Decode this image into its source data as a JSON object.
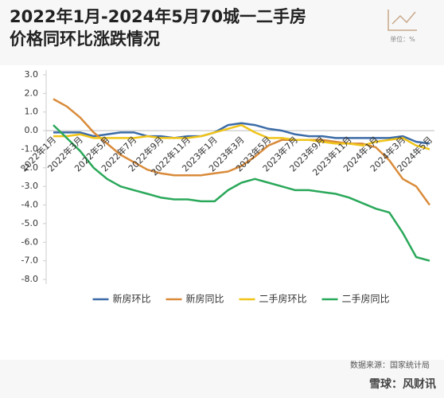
{
  "chart_data": {
    "type": "line",
    "title": [
      "2022年1月-2024年5月70城一二手房",
      "价格同环比涨跌情况"
    ],
    "unit_label": "单位：%",
    "source": "数据来源：国家统计局",
    "footer": "雪球：风财讯",
    "categories": [
      "2022年1月",
      null,
      "2022年3月",
      null,
      "2022年5月",
      null,
      "2022年7月",
      null,
      "2022年9月",
      null,
      "2022年11月",
      null,
      "2023年1月",
      null,
      "2023年3月",
      null,
      "2023年5月",
      null,
      "2023年7月",
      null,
      "2023年9月",
      null,
      "2023年11月",
      null,
      "2024年1月",
      null,
      "2024年3月",
      null,
      "2024年5月"
    ],
    "ylim": [
      -8,
      3
    ],
    "yticks": [
      {
        "value": 3,
        "label": "3.0"
      },
      {
        "value": 2,
        "label": "2.0"
      },
      {
        "value": 1,
        "label": "1.0"
      },
      {
        "value": 0,
        "label": "0.0"
      },
      {
        "value": -1,
        "label": "-1.0"
      },
      {
        "value": -2,
        "label": "-2.0"
      },
      {
        "value": -3,
        "label": "-3.0"
      },
      {
        "value": -4,
        "label": "-4.0"
      },
      {
        "value": -5,
        "label": "-5.0"
      },
      {
        "value": -6,
        "label": "-6.0"
      },
      {
        "value": -7,
        "label": "-7.0"
      },
      {
        "value": -8,
        "label": "-8.0"
      }
    ],
    "grid": false,
    "legend": "bottom",
    "series": [
      {
        "name": "新房环比",
        "color": "#3c6ca8",
        "values": [
          -0.1,
          -0.1,
          -0.1,
          -0.3,
          -0.2,
          -0.1,
          -0.1,
          -0.3,
          -0.3,
          -0.4,
          -0.3,
          -0.3,
          -0.1,
          0.3,
          0.4,
          0.3,
          0.1,
          0.0,
          -0.2,
          -0.3,
          -0.3,
          -0.4,
          -0.4,
          -0.4,
          -0.4,
          -0.4,
          -0.3,
          -0.6,
          -0.7
        ]
      },
      {
        "name": "新房同比",
        "color": "#d98b3a",
        "values": [
          1.7,
          1.3,
          0.7,
          -0.1,
          -0.7,
          -1.3,
          -1.7,
          -2.1,
          -2.3,
          -2.4,
          -2.4,
          -2.4,
          -2.3,
          -2.2,
          -1.9,
          -1.4,
          -0.8,
          -0.5,
          -0.5,
          -0.5,
          -0.5,
          -0.6,
          -0.7,
          -0.7,
          -0.9,
          -1.6,
          -2.6,
          -3.0,
          -4.0
        ]
      },
      {
        "name": "二手房环比",
        "color": "#f0c419",
        "values": [
          -0.3,
          -0.3,
          -0.2,
          -0.4,
          -0.4,
          -0.4,
          -0.4,
          -0.3,
          -0.4,
          -0.4,
          -0.4,
          -0.3,
          -0.1,
          0.1,
          0.3,
          -0.1,
          -0.4,
          -0.4,
          -0.5,
          -0.5,
          -0.6,
          -0.7,
          -0.7,
          -0.8,
          -0.6,
          -0.5,
          -0.4,
          -0.8,
          -1.0
        ]
      },
      {
        "name": "二手房同比",
        "color": "#2aa85a",
        "values": [
          0.3,
          -0.4,
          -1.1,
          -2.0,
          -2.6,
          -3.0,
          -3.2,
          -3.4,
          -3.6,
          -3.7,
          -3.7,
          -3.8,
          -3.8,
          -3.2,
          -2.8,
          -2.6,
          -2.8,
          -3.0,
          -3.2,
          -3.2,
          -3.3,
          -3.4,
          -3.6,
          -3.9,
          -4.2,
          -4.4,
          -5.5,
          -6.8,
          -7.0
        ]
      }
    ]
  }
}
